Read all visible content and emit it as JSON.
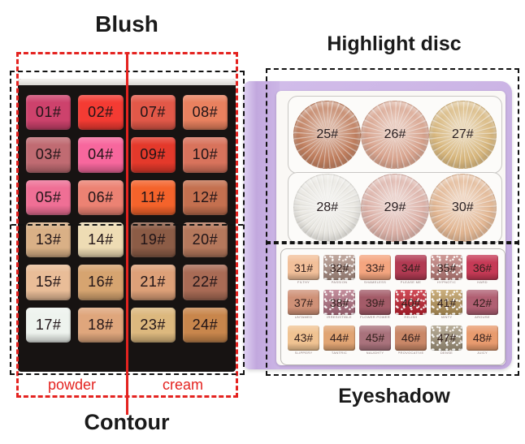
{
  "labels": {
    "blush": "Blush",
    "contour": "Contour",
    "highlight": "Highlight disc",
    "eyeshadow": "Eyeshadow",
    "powder": "powder",
    "cream": "cream"
  },
  "colors": {
    "annotation_red": "#e42320",
    "annotation_black": "#121212",
    "book_purple": "#c9b3e6",
    "tray_black": "#171312"
  },
  "palette": {
    "swatches": [
      {
        "label": "01#",
        "color": "#cd426c"
      },
      {
        "label": "02#",
        "color": "#f43b33"
      },
      {
        "label": "07#",
        "color": "#e25848"
      },
      {
        "label": "08#",
        "color": "#e9815f"
      },
      {
        "label": "03#",
        "color": "#c06b72"
      },
      {
        "label": "04#",
        "color": "#f7679d"
      },
      {
        "label": "09#",
        "color": "#e4392b"
      },
      {
        "label": "10#",
        "color": "#d8735c"
      },
      {
        "label": "05#",
        "color": "#ef6f95"
      },
      {
        "label": "06#",
        "color": "#ec8273"
      },
      {
        "label": "11#",
        "color": "#f4632b"
      },
      {
        "label": "12#",
        "color": "#c4704f"
      },
      {
        "label": "13#",
        "color": "#d9b086"
      },
      {
        "label": "14#",
        "color": "#eedcb4"
      },
      {
        "label": "19#",
        "color": "#8c5c46"
      },
      {
        "label": "20#",
        "color": "#b5785c"
      },
      {
        "label": "15#",
        "color": "#e9bd98"
      },
      {
        "label": "16#",
        "color": "#d6a470"
      },
      {
        "label": "21#",
        "color": "#dda078"
      },
      {
        "label": "22#",
        "color": "#a96b55"
      },
      {
        "label": "17#",
        "color": "#eef3ee"
      },
      {
        "label": "18#",
        "color": "#dfa67c"
      },
      {
        "label": "23#",
        "color": "#dcb87e"
      },
      {
        "label": "24#",
        "color": "#c8864c"
      }
    ]
  },
  "highlight_discs": {
    "discs": [
      {
        "label": "25#",
        "color": "#c17f5f"
      },
      {
        "label": "26#",
        "color": "#d9a48e"
      },
      {
        "label": "27#",
        "color": "#d9b87e"
      },
      {
        "label": "28#",
        "color": "#e9e7e1"
      },
      {
        "label": "29#",
        "color": "#ddb2a8"
      },
      {
        "label": "30#",
        "color": "#e3b793"
      }
    ]
  },
  "eyeshadow": {
    "shades": [
      {
        "label": "31#",
        "name": "FILTHY",
        "color": "#f2c09a",
        "finish": "matte"
      },
      {
        "label": "32#",
        "name": "PASSION",
        "color": "#b29488",
        "finish": "glitter"
      },
      {
        "label": "33#",
        "name": "SHAMELESS",
        "color": "#f4a57f",
        "finish": "matte"
      },
      {
        "label": "34#",
        "name": "PLEASE ME",
        "color": "#b13a52",
        "finish": "matte"
      },
      {
        "label": "35#",
        "name": "HYPNOTIC",
        "color": "#c4827e",
        "finish": "glitter"
      },
      {
        "label": "36#",
        "name": "HARD",
        "color": "#c63a56",
        "finish": "matte"
      },
      {
        "label": "37#",
        "name": "UNTAMED",
        "color": "#cf9177",
        "finish": "matte"
      },
      {
        "label": "38#",
        "name": "IRRESISTIBLE",
        "color": "#b57385",
        "finish": "glitter"
      },
      {
        "label": "39#",
        "name": "FLOWER POWER",
        "color": "#a35b68",
        "finish": "matte"
      },
      {
        "label": "40#",
        "name": "RELISH",
        "color": "#c6202f",
        "finish": "glitter"
      },
      {
        "label": "41#",
        "name": "MINTY",
        "color": "#bf9c5e",
        "finish": "glitter"
      },
      {
        "label": "42#",
        "name": "AROUSE",
        "color": "#b05f72",
        "finish": "matte"
      },
      {
        "label": "43#",
        "name": "SLIPPERY",
        "color": "#f0c392",
        "finish": "matte"
      },
      {
        "label": "44#",
        "name": "TANTRIC",
        "color": "#e0a473",
        "finish": "matte"
      },
      {
        "label": "45#",
        "name": "NAUGHTY",
        "color": "#a9727c",
        "finish": "matte"
      },
      {
        "label": "46#",
        "name": "PROVOCATIVE",
        "color": "#c98767",
        "finish": "matte"
      },
      {
        "label": "47#",
        "name": "DENSE",
        "color": "#a89a80",
        "finish": "glitter"
      },
      {
        "label": "48#",
        "name": "JUICY",
        "color": "#e89b6e",
        "finish": "matte"
      }
    ]
  }
}
